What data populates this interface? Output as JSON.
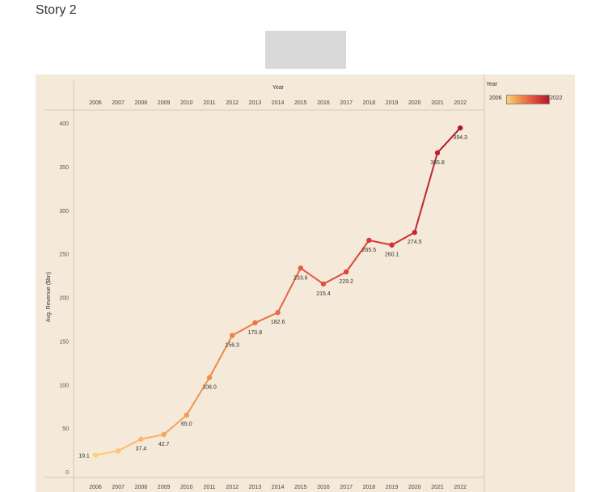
{
  "story": {
    "title": "Story 2"
  },
  "legend": {
    "title": "Year",
    "min_label": "2006",
    "max_label": "2022"
  },
  "colors": {
    "background": "#f5e9d9",
    "gradient_start": "#fbd27a",
    "gradient_end": "#b2182b",
    "axis_line": "#d8c9b4",
    "nav_placeholder": "#d9d9d9"
  },
  "chart_data": {
    "type": "line",
    "title": "",
    "xlabel": "Year",
    "ylabel": "Avg. Revenue ($bn)",
    "x": [
      "2006",
      "2007",
      "2008",
      "2009",
      "2010",
      "2011",
      "2012",
      "2013",
      "2014",
      "2015",
      "2016",
      "2017",
      "2018",
      "2019",
      "2020",
      "2021",
      "2022"
    ],
    "series": [
      {
        "values": [
          19.1,
          24.0,
          37.4,
          42.7,
          65.0,
          108.0,
          156.3,
          170.8,
          182.6,
          233.6,
          215.4,
          229.2,
          265.5,
          260.1,
          274.5,
          365.8,
          394.3
        ]
      }
    ],
    "data_labels": [
      "19.1",
      "",
      "37.4",
      "42.7",
      "65.0",
      "108.0",
      "156.3",
      "170.8",
      "182.6",
      "233.6",
      "215.4",
      "229.2",
      "265.5",
      "260.1",
      "274.5",
      "365.8",
      "394.3"
    ],
    "yticks": [
      0,
      50,
      100,
      150,
      200,
      250,
      300,
      350,
      400
    ],
    "ylim": [
      0,
      400
    ],
    "x_axis_position": "top-and-bottom",
    "grid": false,
    "legend_position": "top-right"
  }
}
